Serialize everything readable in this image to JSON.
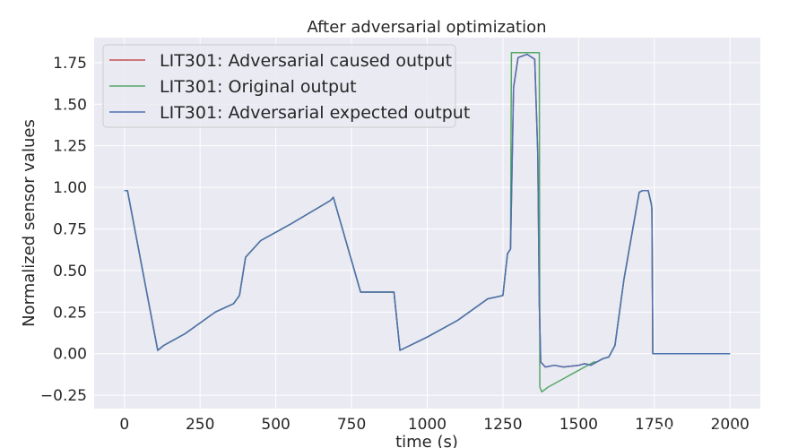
{
  "chart_data": {
    "type": "line",
    "title": "After adversarial optimization",
    "xlabel": "time (s)",
    "ylabel": "Normalized sensor values",
    "xlim": [
      -100,
      2100
    ],
    "ylim": [
      -0.33,
      1.9
    ],
    "xticks": [
      0,
      250,
      500,
      750,
      1000,
      1250,
      1500,
      1750,
      2000
    ],
    "xtick_labels": [
      "0",
      "250",
      "500",
      "750",
      "1000",
      "1250",
      "1500",
      "1750",
      "2000"
    ],
    "yticks": [
      -0.25,
      0.0,
      0.25,
      0.5,
      0.75,
      1.0,
      1.25,
      1.5,
      1.75
    ],
    "ytick_labels": [
      "−0.25",
      "0.00",
      "0.25",
      "0.50",
      "0.75",
      "1.00",
      "1.25",
      "1.50",
      "1.75"
    ],
    "grid": true,
    "legend_position": "top-left",
    "background": "#eaeaf2",
    "series": [
      {
        "name": "LIT301: Adversarial caused output",
        "color": "#c44e52",
        "x": [
          0,
          10,
          110,
          130,
          200,
          300,
          360,
          380,
          400,
          450,
          550,
          680,
          690,
          780,
          860,
          890,
          910,
          1000,
          1100,
          1200,
          1250,
          1265,
          1275,
          1285,
          1300,
          1330,
          1355,
          1365,
          1370,
          1375,
          1390,
          1420,
          1450,
          1500,
          1520,
          1540,
          1560,
          1580,
          1600,
          1620,
          1650,
          1700,
          1710,
          1730,
          1740,
          1742,
          1745,
          2000
        ],
        "y": [
          0.98,
          0.98,
          0.02,
          0.05,
          0.12,
          0.25,
          0.3,
          0.35,
          0.58,
          0.68,
          0.78,
          0.92,
          0.94,
          0.37,
          0.37,
          0.37,
          0.02,
          0.1,
          0.2,
          0.33,
          0.35,
          0.6,
          0.63,
          1.6,
          1.78,
          1.8,
          1.77,
          1.2,
          0.3,
          -0.05,
          -0.08,
          -0.07,
          -0.08,
          -0.07,
          -0.06,
          -0.07,
          -0.05,
          -0.03,
          -0.02,
          0.05,
          0.45,
          0.97,
          0.98,
          0.98,
          0.9,
          0.87,
          0.0,
          0.0
        ]
      },
      {
        "name": "LIT301: Original output",
        "color": "#55a868",
        "x": [
          0,
          10,
          110,
          130,
          200,
          300,
          360,
          380,
          400,
          450,
          550,
          680,
          690,
          780,
          860,
          890,
          910,
          1000,
          1100,
          1200,
          1250,
          1265,
          1275,
          1278,
          1370,
          1372,
          1378,
          1400,
          1450,
          1500,
          1550,
          1560,
          1580,
          1600,
          1620,
          1650,
          1700,
          1710,
          1730,
          1740,
          1742,
          1745,
          2000
        ],
        "y": [
          0.98,
          0.98,
          0.02,
          0.05,
          0.12,
          0.25,
          0.3,
          0.35,
          0.58,
          0.68,
          0.78,
          0.92,
          0.94,
          0.37,
          0.37,
          0.37,
          0.02,
          0.1,
          0.2,
          0.33,
          0.35,
          0.6,
          0.63,
          1.81,
          1.81,
          -0.2,
          -0.23,
          -0.2,
          -0.15,
          -0.1,
          -0.05,
          -0.05,
          -0.03,
          -0.02,
          0.05,
          0.45,
          0.97,
          0.98,
          0.98,
          0.9,
          0.87,
          0.0,
          0.0
        ]
      },
      {
        "name": "LIT301: Adversarial expected output",
        "color": "#4c72b0",
        "x": [
          0,
          10,
          110,
          130,
          200,
          300,
          360,
          380,
          400,
          450,
          550,
          680,
          690,
          780,
          860,
          890,
          910,
          1000,
          1100,
          1200,
          1250,
          1265,
          1275,
          1285,
          1300,
          1330,
          1355,
          1365,
          1370,
          1375,
          1390,
          1420,
          1450,
          1500,
          1520,
          1540,
          1560,
          1580,
          1600,
          1620,
          1650,
          1700,
          1710,
          1730,
          1740,
          1742,
          1745,
          2000
        ],
        "y": [
          0.98,
          0.98,
          0.02,
          0.05,
          0.12,
          0.25,
          0.3,
          0.35,
          0.58,
          0.68,
          0.78,
          0.92,
          0.94,
          0.37,
          0.37,
          0.37,
          0.02,
          0.1,
          0.2,
          0.33,
          0.35,
          0.6,
          0.63,
          1.6,
          1.78,
          1.8,
          1.77,
          1.2,
          0.3,
          -0.05,
          -0.08,
          -0.07,
          -0.08,
          -0.07,
          -0.06,
          -0.07,
          -0.05,
          -0.03,
          -0.02,
          0.05,
          0.45,
          0.97,
          0.98,
          0.98,
          0.9,
          0.87,
          0.0,
          0.0
        ]
      }
    ]
  },
  "watermark": "CSDN @jiangdie666"
}
